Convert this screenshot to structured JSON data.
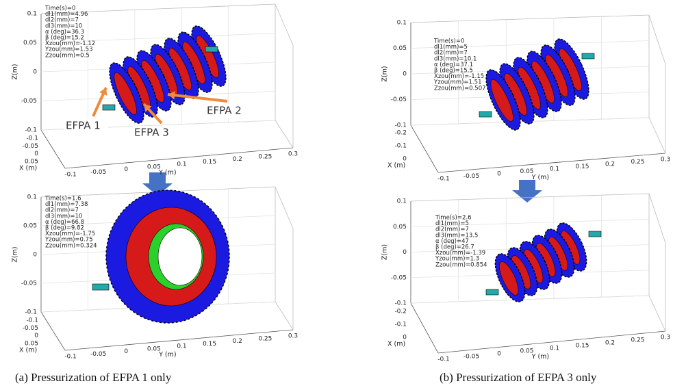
{
  "panels": [
    {
      "info": [
        "Time(s)=0",
        "dl1(mm)=4.96",
        "dl2(mm)=7",
        "dl3(mm)=10",
        "α (deg)=36.3",
        "β (deg)=15.2",
        "Xzou(mm)=-1.12",
        "Yzou(mm)=1.53",
        "Zzou(mm)=0.5"
      ],
      "z_label": "Z(m)",
      "x_label": "X (m)",
      "y_label": "Y (m)",
      "z_ticks": [
        "0.1",
        "0.05",
        "0",
        "-0.05",
        "-0.1"
      ],
      "x_ticks": [
        "-0.1",
        "-0.05",
        "0",
        "0.05"
      ],
      "y_ticks": [
        "-0.1",
        "-0.05",
        "0",
        "0.05",
        "0.1",
        "0.15",
        "0.2",
        "0.25",
        "0.3"
      ],
      "callouts": [
        "EFPA 1",
        "EFPA 2",
        "EFPA 3"
      ]
    },
    {
      "info": [
        "Time(s)=1.6",
        "dl1(mm)=7.38",
        "dl2(mm)=7",
        "dl3(mm)=10",
        "α (deg)=66.8",
        "β (deg)=9.82",
        "Xzou(mm)=-1.75",
        "Yzou(mm)=0.75",
        "Zzou(mm)=0.324"
      ],
      "z_label": "Z(m)",
      "x_label": "X (m)",
      "y_label": "Y (m)",
      "z_ticks": [
        "0.1",
        "0.05",
        "0",
        "-0.05",
        "-0.1"
      ],
      "x_ticks": [
        "-0.1",
        "-0.05",
        "0",
        "0.05"
      ],
      "y_ticks": [
        "-0.1",
        "-0.05",
        "0",
        "0.05",
        "0.1",
        "0.15",
        "0.2",
        "0.25",
        "0.3"
      ]
    },
    {
      "info": [
        "Time(s)=0",
        "dl1(mm)=5",
        "dl2(mm)=7",
        "dl3(mm)=10.1",
        "α (deg)=37.1",
        "β (deg)=15.5",
        "Xzou(mm)=-1.15",
        "Yzou(mm)=1.51",
        "Zzou(mm)=0.507"
      ],
      "z_label": "Z(m)",
      "x_label": "X (m)",
      "y_label": "Y (m)",
      "z_ticks": [
        "0.1",
        "0.05",
        "0",
        "-0.05",
        "-0.1"
      ],
      "x_ticks": [
        "-0.2",
        "-0.1",
        "0"
      ],
      "y_ticks": [
        "-0.1",
        "-0.05",
        "0",
        "0.05",
        "0.1",
        "0.15",
        "0.2",
        "0.25",
        "0.3"
      ]
    },
    {
      "info": [
        "Time(s)=2.6",
        "dl1(mm)=5",
        "dl2(mm)=7",
        "dl3(mm)=13.5",
        "α (deg)=47",
        "β (deg)=26.7",
        "Xzou(mm)=-1.39",
        "Yzou(mm)=1.3",
        "Zzou(mm)=0.854"
      ],
      "z_label": "Z(m)",
      "x_label": "X (m)",
      "y_label": "Y (m)",
      "z_ticks": [
        "0.1",
        "0.05",
        "0",
        "-0.05",
        "-0.1"
      ],
      "x_ticks": [
        "-0.2",
        "-0.1",
        "0"
      ],
      "y_ticks": [
        "-0.1",
        "-0.05",
        "0",
        "0.05",
        "0.1",
        "0.15",
        "0.2",
        "0.25",
        "0.3"
      ]
    }
  ],
  "captions": [
    "(a) Pressurization of EFPA 1 only",
    "(b) Pressurization of EFPA 3 only"
  ]
}
